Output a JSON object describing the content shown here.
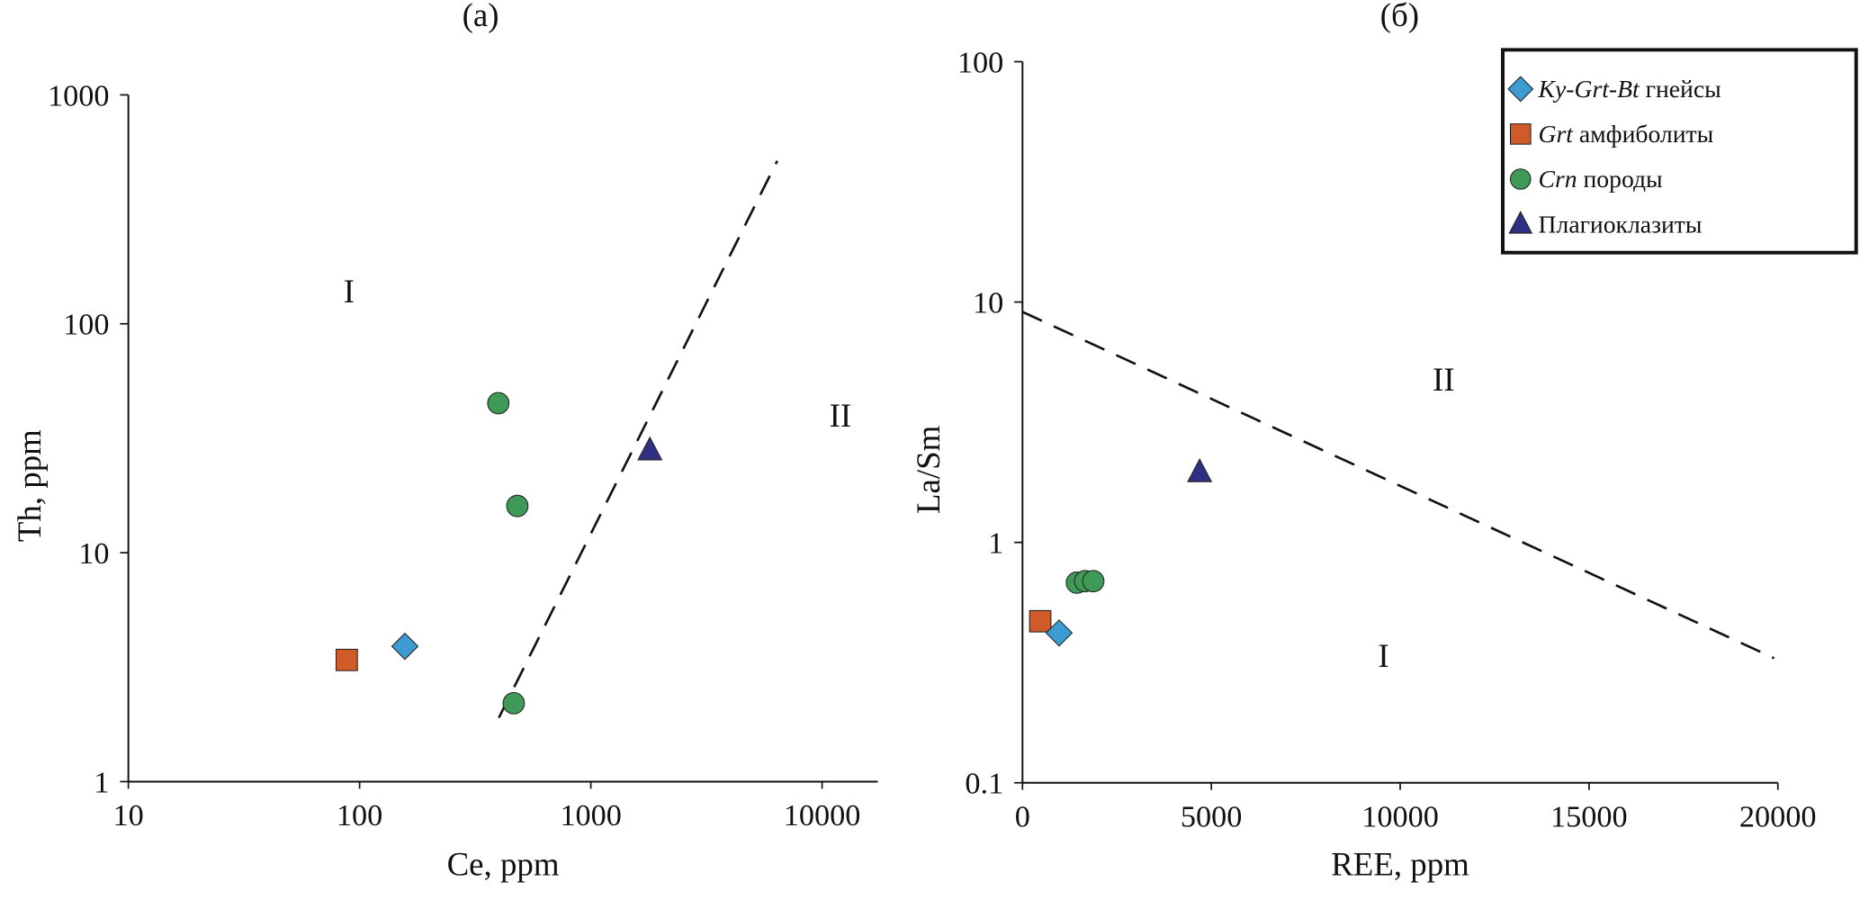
{
  "colors": {
    "ky_grt_bt": "#3b9bd2",
    "grt_amph": "#d05a28",
    "crn": "#3f9a58",
    "plag": "#2e3083"
  },
  "legend": [
    {
      "key": "ky_grt_bt",
      "marker": "diamond",
      "italic": "Ky-Grt-Bt",
      "text": " гнейсы"
    },
    {
      "key": "grt_amph",
      "marker": "square",
      "italic": "Grt",
      "text": " амфиболиты"
    },
    {
      "key": "crn",
      "marker": "circle",
      "italic": "Crn",
      "text": " породы"
    },
    {
      "key": "plag",
      "marker": "triangle",
      "italic": "",
      "text": "Плагиоклазиты"
    }
  ],
  "chart_data": [
    {
      "type": "scatter",
      "panel": "(a)",
      "xlabel": "Ce, ppm",
      "ylabel": "Th, ppm",
      "xscale": "log",
      "yscale": "log",
      "xlim": [
        10,
        17000
      ],
      "ylim": [
        1,
        1000
      ],
      "xticks": [
        "10",
        "100",
        "1000",
        "10000"
      ],
      "xtick_values": [
        10,
        100,
        1000,
        10000
      ],
      "yticks": [
        "1",
        "10",
        "100",
        "1000"
      ],
      "ytick_values": [
        1,
        10,
        100,
        1000
      ],
      "series": [
        {
          "key": "grt_amph",
          "points": [
            [
              88,
              3.4
            ]
          ]
        },
        {
          "key": "ky_grt_bt",
          "points": [
            [
              157,
              3.9
            ]
          ]
        },
        {
          "key": "crn",
          "points": [
            [
              398,
              45
            ],
            [
              481,
              16
            ],
            [
              464,
              2.2
            ]
          ]
        },
        {
          "key": "plag",
          "points": [
            [
              1800,
              28
            ]
          ]
        }
      ],
      "boundary_line": [
        [
          400,
          1.9
        ],
        [
          6400,
          515
        ]
      ],
      "regions": [
        {
          "label": "I",
          "at": [
            90,
            140
          ]
        },
        {
          "label": "II",
          "at": [
            12000,
            40
          ]
        }
      ]
    },
    {
      "type": "scatter",
      "panel": "(б)",
      "xlabel": "REE, ppm",
      "ylabel": "La/Sm",
      "xscale": "linear",
      "yscale": "log",
      "xlim": [
        0,
        20000
      ],
      "ylim": [
        0.1,
        100
      ],
      "xticks": [
        "0",
        "5000",
        "10000",
        "15000",
        "20000"
      ],
      "xtick_values": [
        0,
        5000,
        10000,
        15000,
        20000
      ],
      "yticks": [
        "0.1",
        "1",
        "10",
        "100"
      ],
      "ytick_values": [
        0.1,
        1,
        10,
        100
      ],
      "series": [
        {
          "key": "grt_amph",
          "points": [
            [
              470,
              0.47
            ]
          ]
        },
        {
          "key": "ky_grt_bt",
          "points": [
            [
              970,
              0.42
            ]
          ]
        },
        {
          "key": "crn",
          "points": [
            [
              1440,
              0.68
            ],
            [
              1660,
              0.69
            ],
            [
              1875,
              0.69
            ]
          ]
        },
        {
          "key": "plag",
          "points": [
            [
              4690,
              1.96
            ]
          ]
        }
      ],
      "boundary_line": [
        [
          0,
          9.1
        ],
        [
          19900,
          0.33
        ]
      ],
      "regions": [
        {
          "label": "II",
          "at": [
            11150,
            4.8
          ]
        },
        {
          "label": "I",
          "at": [
            9560,
            0.34
          ]
        }
      ]
    }
  ]
}
